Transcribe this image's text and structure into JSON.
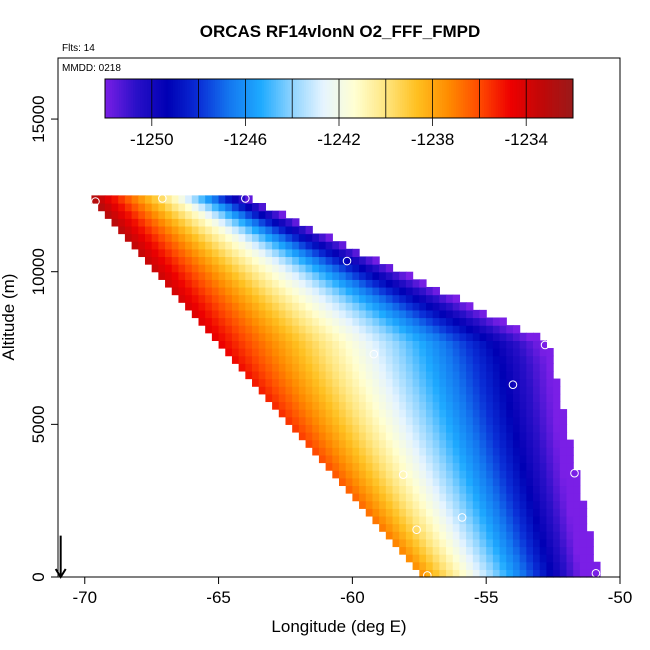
{
  "chart_data": {
    "type": "heatmap",
    "title": "ORCAS RF14vlonN O2_FFF_FMPD",
    "annotations": [
      "Flts: 14",
      "MMDD: 0218"
    ],
    "xlabel": "Longitude (deg E)",
    "ylabel": "Altitude (m)",
    "xlim": [
      -71,
      -50
    ],
    "ylim": [
      0,
      17000
    ],
    "xticks": [
      "-70",
      "-65",
      "-60",
      "-55",
      "-50"
    ],
    "yticks": [
      "0",
      "5000",
      "10000",
      "15000"
    ],
    "grid": false,
    "colorbar": {
      "placement": "top-left inset",
      "range": [
        -1251,
        -1231
      ],
      "ticks": [
        "-1250",
        "-1246",
        "-1242",
        "-1238",
        "-1234"
      ],
      "colors": [
        "#7a1fe6",
        "#2a10c8",
        "#0000b4",
        "#0a2ed6",
        "#1478f0",
        "#1eaaff",
        "#8fd4ff",
        "#e6f4ff",
        "#ffffd2",
        "#ffe680",
        "#ffc020",
        "#ff8c00",
        "#ff4a00",
        "#ee0000",
        "#c00808",
        "#9a1a1a"
      ]
    },
    "value_field": {
      "description_of_gradient": "values decrease from upper-left toward lower-right",
      "top_altitude_m": 12400,
      "diagonal_edge": [
        [
          -69.8,
          12400
        ],
        [
          -57.3,
          0
        ]
      ],
      "right_edge": [
        [
          -52.8,
          7700
        ],
        [
          -50.9,
          0
        ]
      ]
    },
    "data_points": [
      {
        "lon": -69.6,
        "alt": 12300
      },
      {
        "lon": -67.1,
        "alt": 12400
      },
      {
        "lon": -64.0,
        "alt": 12400
      },
      {
        "lon": -60.2,
        "alt": 10350
      },
      {
        "lon": -59.2,
        "alt": 7300
      },
      {
        "lon": -54.0,
        "alt": 6300
      },
      {
        "lon": -52.8,
        "alt": 7600
      },
      {
        "lon": -58.1,
        "alt": 3350
      },
      {
        "lon": -51.7,
        "alt": 3400
      },
      {
        "lon": -57.6,
        "alt": 1550
      },
      {
        "lon": -55.9,
        "alt": 1950
      },
      {
        "lon": -51.0,
        "alt": 1950
      },
      {
        "lon": -57.2,
        "alt": 50
      },
      {
        "lon": -50.9,
        "alt": 120
      }
    ],
    "arrow": {
      "lon": -70.9,
      "from_alt": 700,
      "to_alt": 0
    }
  }
}
